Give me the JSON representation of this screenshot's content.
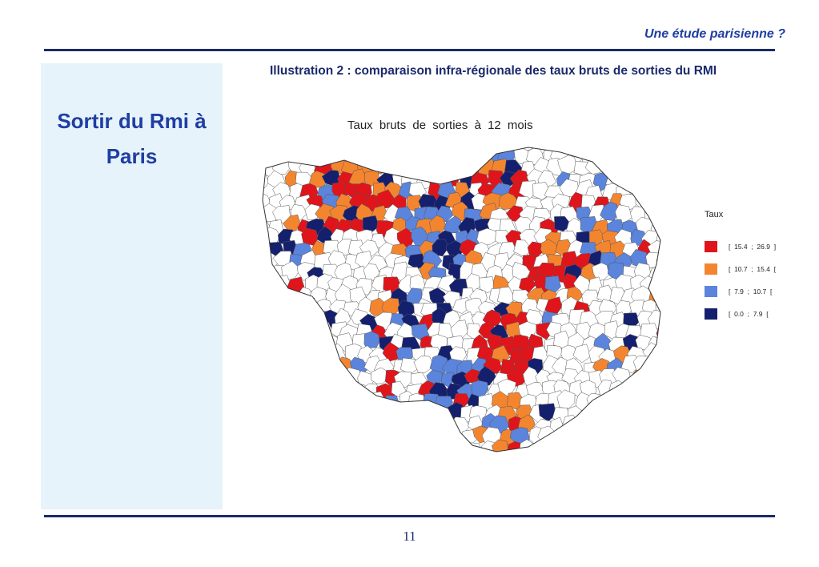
{
  "header": {
    "title": "Une étude parisienne ?"
  },
  "sidebar": {
    "title_line1": "Sortir du Rmi à",
    "title_line2": "Paris"
  },
  "caption": "Illustration 2 : comparaison infra-régionale des taux bruts de sorties du RMI",
  "map": {
    "title": "Taux bruts de sorties à 12 mois",
    "legend": {
      "title": "Taux",
      "items": [
        {
          "label": "[  15.4  ;  26.9  ]",
          "color": "#e0151b"
        },
        {
          "label": "[  10.7  ;  15.4  [",
          "color": "#f4852f"
        },
        {
          "label": "[  7.9  ;  10.7  [",
          "color": "#5b84dc"
        },
        {
          "label": "[  0.0  ;  7.9  [",
          "color": "#14206e"
        }
      ]
    }
  },
  "footer": {
    "page_number": "11"
  }
}
